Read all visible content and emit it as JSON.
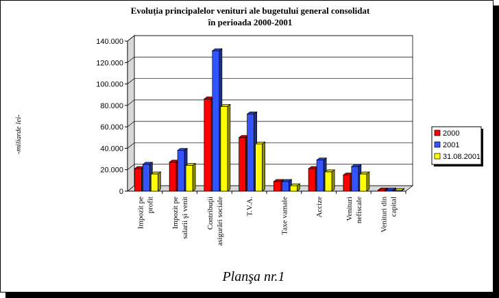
{
  "chart_data": {
    "type": "bar",
    "title_line1": "Evoluția principalelor venituri ale bugetului general consolidat",
    "title_line2": "în perioada 2000-2001",
    "ylabel": "-miliarde lei-",
    "ylim": [
      0,
      140000
    ],
    "yticks": [
      "0",
      "20.000",
      "40.000",
      "60.000",
      "80.000",
      "100.000",
      "120.000",
      "140.000"
    ],
    "categories": [
      [
        "Impozit pe",
        "profit"
      ],
      [
        "Impozit pe",
        "salarii şi venit"
      ],
      [
        "Contribuţii",
        "asigurări sociale"
      ],
      [
        "T.V.A."
      ],
      [
        "Taxe vamale"
      ],
      [
        "Accize"
      ],
      [
        "Venituri",
        "nefiscale"
      ],
      [
        "Venituri din",
        "capital"
      ]
    ],
    "series": [
      {
        "name": "2000",
        "color": "#ff0000",
        "values": [
          21000,
          27000,
          86000,
          50000,
          9000,
          21000,
          15000,
          1000
        ]
      },
      {
        "name": "2001",
        "color": "#3355ff",
        "values": [
          25000,
          38000,
          131000,
          72000,
          9000,
          29000,
          23000,
          1000
        ]
      },
      {
        "name": "31.08.2001",
        "color": "#ffff00",
        "values": [
          16000,
          24000,
          79000,
          44000,
          5000,
          18000,
          16000,
          500
        ]
      }
    ],
    "grid": "horizontal",
    "legend_position": "right",
    "caption": "Planşa nr.1"
  }
}
